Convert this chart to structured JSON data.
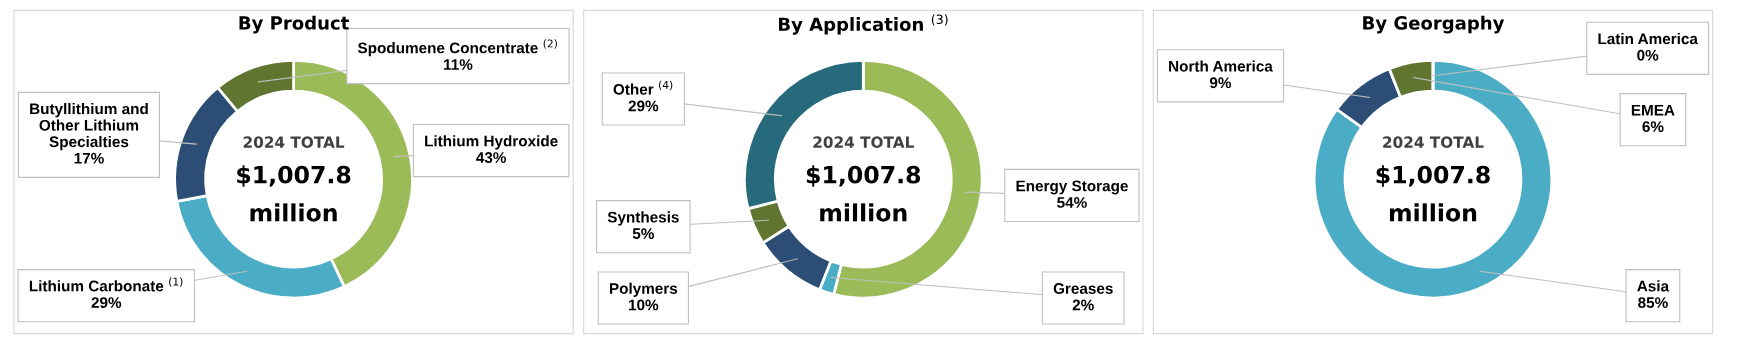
{
  "chart_data": [
    {
      "type": "donut",
      "title": "By Product",
      "annotations": [
        "2024 TOTAL",
        "$1,007.8",
        "million"
      ],
      "categories": [
        "Lithium Hydroxide",
        "Lithium Carbonate $^{(1)}$",
        "Butyllithium and\nOther Lithium\nSpecialties",
        "Spodumene Concentrate $^{(2)}$"
      ],
      "values": [
        43,
        29,
        17,
        11
      ],
      "value_labels": [
        "43%",
        "29%",
        "17%",
        "11%"
      ],
      "colors": [
        "#9bbb59",
        "#4bacc6",
        "#2c4d75",
        "#5f7530"
      ]
    },
    {
      "type": "donut",
      "title": "By Application $^{(3)}$",
      "annotations": [
        "2024 TOTAL",
        "$1,007.8",
        "million"
      ],
      "categories": [
        "Energy Storage",
        "Greases",
        "Polymers",
        "Synthesis",
        "Other $^{(4)}$"
      ],
      "values": [
        54,
        2,
        10,
        5,
        29
      ],
      "value_labels": [
        "54%",
        "2%",
        "10%",
        "5%",
        "29%"
      ],
      "colors": [
        "#9bbb59",
        "#4bacc6",
        "#2c4d75",
        "#5f7530",
        "#276a7c"
      ]
    },
    {
      "type": "donut",
      "title": "By Georgaphy",
      "annotations": [
        "2024 TOTAL",
        "$1,007.8",
        "million"
      ],
      "categories": [
        "Asia",
        "North America",
        "EMEA",
        "Latin America"
      ],
      "values": [
        85,
        9,
        6,
        0
      ],
      "value_labels": [
        "85%",
        "9%",
        "6%",
        "0%"
      ],
      "colors": [
        "#4bacc6",
        "#2c4d75",
        "#5f7530",
        "#9bbb59"
      ]
    }
  ]
}
